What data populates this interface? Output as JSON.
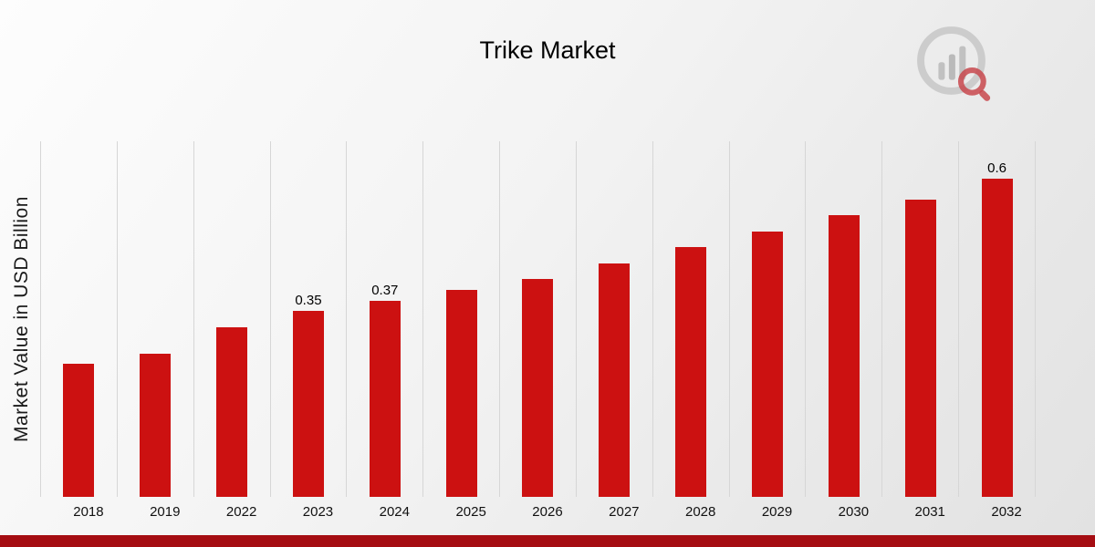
{
  "header": {
    "title": "Trike Market",
    "logo_icon": "bar-chart-magnifier-logo"
  },
  "chart_data": {
    "type": "bar",
    "title": "Trike Market",
    "xlabel": "",
    "ylabel": "Market Value in USD Billion",
    "categories": [
      "2018",
      "2019",
      "2022",
      "2023",
      "2024",
      "2025",
      "2026",
      "2027",
      "2028",
      "2029",
      "2030",
      "2031",
      "2032"
    ],
    "values": [
      0.25,
      0.27,
      0.32,
      0.35,
      0.37,
      0.39,
      0.41,
      0.44,
      0.47,
      0.5,
      0.53,
      0.56,
      0.6
    ],
    "bar_labels": [
      "",
      "",
      "",
      "0.35",
      "0.37",
      "",
      "",
      "",
      "",
      "",
      "",
      "",
      "0.6"
    ],
    "ylim": [
      0,
      0.67
    ],
    "grid": "vertical",
    "legend": "none",
    "bar_color": "#cc1111",
    "gridline_color": "#d6d6d6"
  },
  "footer": {
    "accent_color": "#a50d12"
  },
  "colors": {
    "background_start": "#fdfdfd",
    "background_end": "#e2e2e2",
    "text": "#111111",
    "logo_gray": "#c7c7c7",
    "logo_red": "#c62828"
  }
}
